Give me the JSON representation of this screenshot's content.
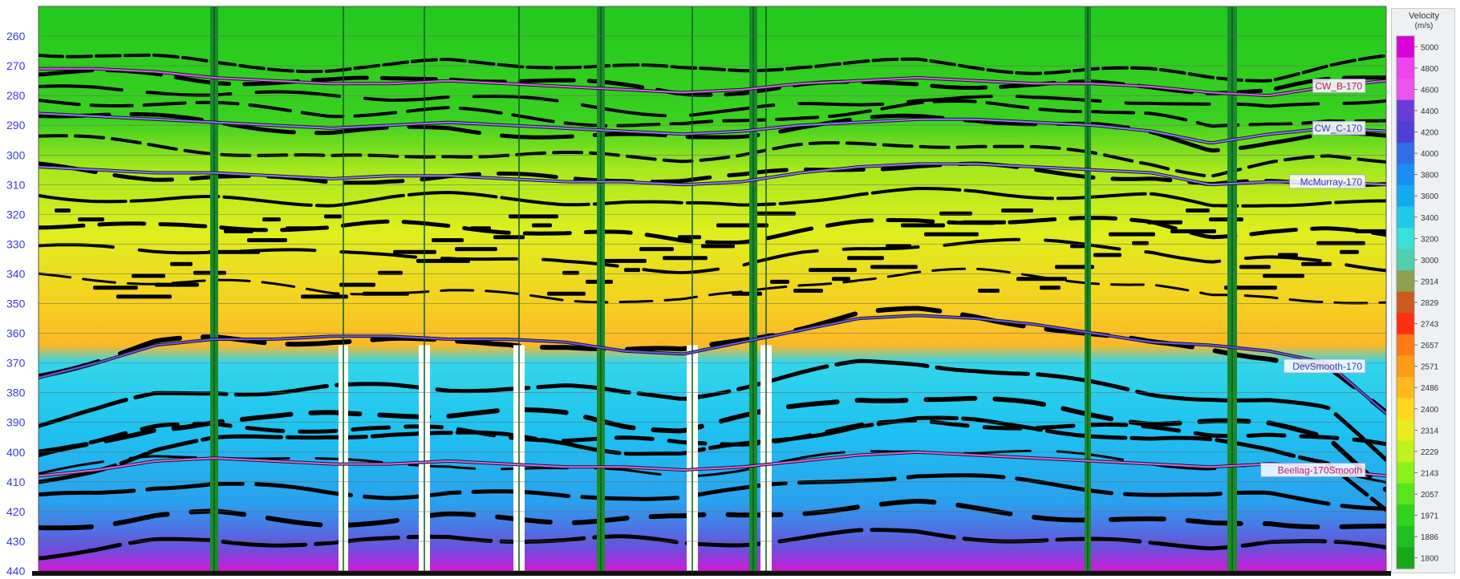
{
  "chart_data": {
    "type": "heatmap",
    "title": "",
    "xlabel": "",
    "ylabel": "",
    "y_axis": {
      "ticks": [
        260,
        270,
        280,
        290,
        300,
        310,
        320,
        330,
        340,
        350,
        360,
        370,
        380,
        390,
        400,
        410,
        420,
        430,
        440
      ],
      "ylim": [
        250,
        440
      ],
      "tick_color": "#3a3adf"
    },
    "grid": true,
    "horizons": [
      {
        "name": "CW_B-170",
        "label_color": "#c3127a",
        "line_color": "#c86ad6",
        "depths": [
          271,
          271,
          272,
          274,
          275,
          276,
          276,
          275,
          276,
          277,
          278,
          279,
          278,
          276,
          275,
          274,
          275,
          276,
          276,
          277,
          279,
          280,
          277,
          275
        ]
      },
      {
        "name": "CW_C-170",
        "label_color": "#3a3ad0",
        "line_color": "#8a7ee6",
        "depths": [
          286,
          287,
          288,
          289,
          290,
          291,
          290,
          289,
          290,
          291,
          292,
          293,
          292,
          290,
          289,
          288,
          288,
          289,
          290,
          292,
          296,
          293,
          291,
          292
        ]
      },
      {
        "name": "McMurray-170",
        "label_color": "#3a3ad0",
        "line_color": "#8a7ee6",
        "depths": [
          304,
          305,
          306,
          306,
          307,
          308,
          307,
          307,
          308,
          309,
          309,
          310,
          309,
          306,
          304,
          303,
          303,
          304,
          305,
          306,
          310,
          309,
          309,
          310
        ]
      },
      {
        "name": "DevSmooth-170",
        "label_color": "#3a3ad0",
        "line_color": "#6b5ad8",
        "depths": [
          375,
          370,
          364,
          362,
          362,
          361,
          361,
          362,
          362,
          363,
          366,
          367,
          363,
          359,
          355,
          354,
          355,
          357,
          360,
          363,
          364,
          366,
          370,
          387
        ]
      },
      {
        "name": "Beeliag-170Smooth",
        "label_color": "#c3127a",
        "line_color": "#d06ad8",
        "depths": [
          408,
          406,
          403,
          402,
          403,
          404,
          404,
          403,
          404,
          405,
          405,
          406,
          405,
          403,
          401,
          400,
          401,
          402,
          403,
          404,
          405,
          404,
          406,
          408
        ]
      }
    ],
    "colorbar": {
      "title": "Velocity",
      "unit": "(m/s)",
      "ticks": [
        5000,
        4800,
        4600,
        4400,
        4200,
        4000,
        3800,
        3600,
        3400,
        3200,
        3000,
        2914,
        2829,
        2743,
        2657,
        2571,
        2486,
        2400,
        2314,
        2229,
        2143,
        2057,
        1971,
        1886,
        1800
      ],
      "colors": [
        "#d800d8",
        "#ee44ee",
        "#e955ee",
        "#6b3cd8",
        "#4e3fd6",
        "#2f6ee6",
        "#1a8ef2",
        "#14aaf0",
        "#21c8e8",
        "#39e0d6",
        "#4fcfae",
        "#8fa050",
        "#cc5a20",
        "#ff3010",
        "#ff7a14",
        "#ff9c16",
        "#ffb820",
        "#ffd81e",
        "#e8ec1e",
        "#c2f21e",
        "#8cf01c",
        "#56e61a",
        "#30d41c",
        "#20c020",
        "#18a818"
      ]
    }
  }
}
